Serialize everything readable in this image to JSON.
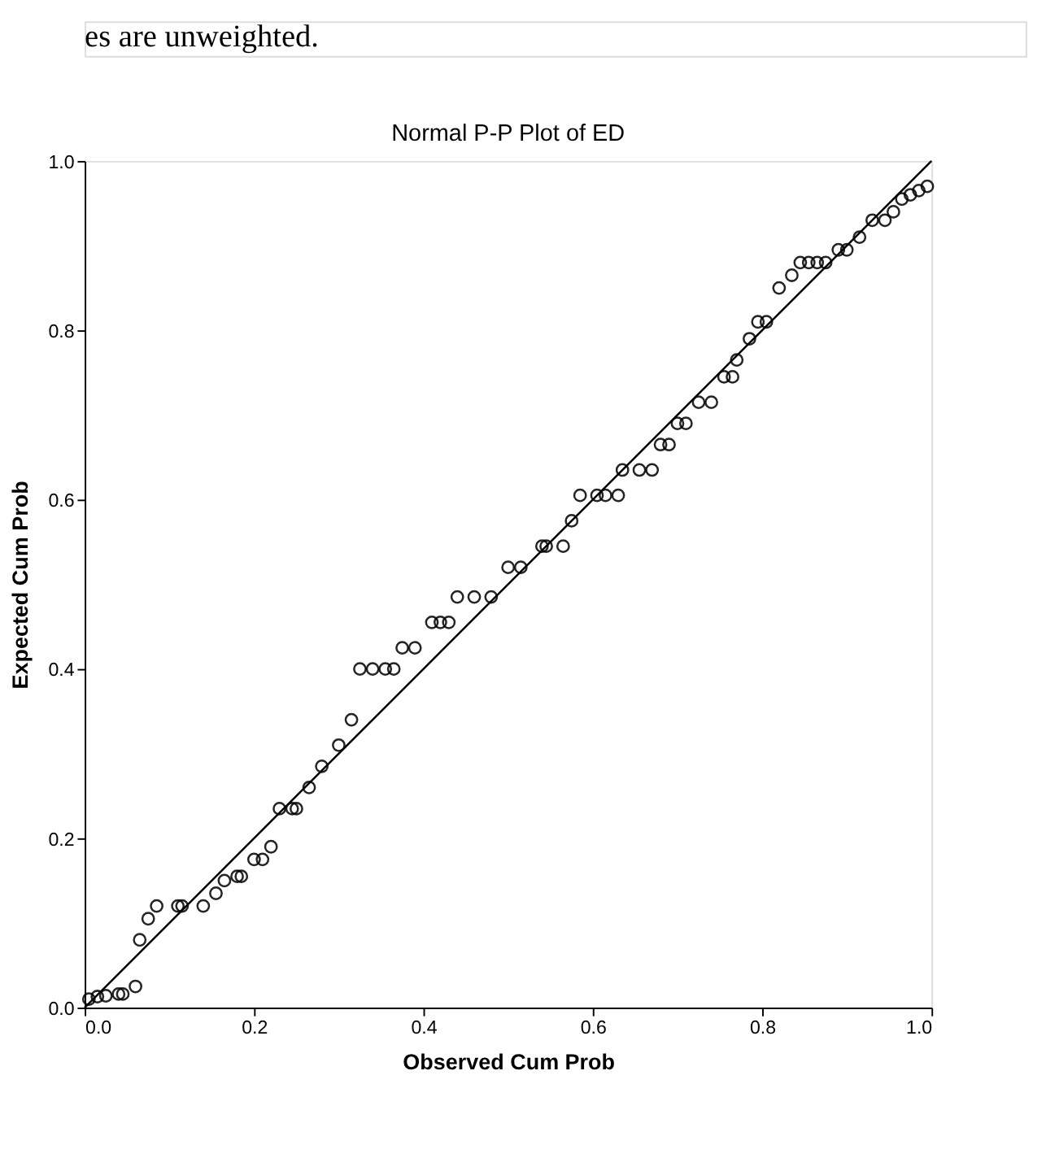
{
  "chart_data": {
    "type": "scatter",
    "title": "Normal P-P Plot of ED",
    "xlabel": "Observed Cum Prob",
    "ylabel": "Expected Cum Prob",
    "annotations": [
      "es are unweighted."
    ],
    "xlim": [
      0,
      1
    ],
    "ylim": [
      0,
      1
    ],
    "xticks": [
      {
        "value": 0,
        "label": "0.0"
      },
      0.2,
      0.4,
      0.6,
      0.8,
      {
        "value": 1,
        "label": "1.0"
      }
    ],
    "yticks": [
      {
        "value": 0,
        "label": "0.0"
      },
      0.2,
      0.4,
      0.6,
      0.8,
      {
        "value": 1,
        "label": "1.0"
      }
    ],
    "grid": false,
    "marker": "circle",
    "series": [
      {
        "color": "#000000",
        "x": [
          0.005,
          0.015,
          0.025,
          0.04,
          0.045,
          0.06,
          0.065,
          0.075,
          0.085,
          0.11,
          0.115,
          0.14,
          0.155,
          0.165,
          0.18,
          0.185,
          0.2,
          0.21,
          0.22,
          0.23,
          0.245,
          0.25,
          0.265,
          0.28,
          0.3,
          0.315,
          0.325,
          0.34,
          0.355,
          0.365,
          0.375,
          0.39,
          0.41,
          0.42,
          0.43,
          0.44,
          0.46,
          0.48,
          0.5,
          0.515,
          0.54,
          0.545,
          0.565,
          0.575,
          0.585,
          0.605,
          0.615,
          0.63,
          0.635,
          0.655,
          0.67,
          0.68,
          0.69,
          0.7,
          0.71,
          0.725,
          0.74,
          0.755,
          0.765,
          0.77,
          0.785,
          0.795,
          0.805,
          0.82,
          0.835,
          0.845,
          0.855,
          0.865,
          0.875,
          0.89,
          0.9,
          0.915,
          0.93,
          0.945,
          0.955,
          0.965,
          0.975,
          0.985,
          0.995
        ],
        "values": [
          0.01,
          0.013,
          0.014,
          0.016,
          0.016,
          0.025,
          0.08,
          0.105,
          0.12,
          0.12,
          0.12,
          0.12,
          0.135,
          0.15,
          0.155,
          0.155,
          0.175,
          0.175,
          0.19,
          0.235,
          0.235,
          0.235,
          0.26,
          0.285,
          0.31,
          0.34,
          0.4,
          0.4,
          0.4,
          0.4,
          0.425,
          0.425,
          0.455,
          0.455,
          0.455,
          0.485,
          0.485,
          0.485,
          0.52,
          0.52,
          0.545,
          0.545,
          0.545,
          0.575,
          0.605,
          0.605,
          0.605,
          0.605,
          0.635,
          0.635,
          0.635,
          0.665,
          0.665,
          0.69,
          0.69,
          0.715,
          0.715,
          0.745,
          0.745,
          0.765,
          0.79,
          0.81,
          0.81,
          0.85,
          0.865,
          0.88,
          0.88,
          0.88,
          0.88,
          0.895,
          0.895,
          0.91,
          0.93,
          0.93,
          0.94,
          0.955,
          0.96,
          0.965,
          0.97
        ]
      },
      {
        "type": "line",
        "color": "#000000",
        "marker": "none",
        "line_style": "solid",
        "x": [
          0,
          1
        ],
        "values": [
          0,
          1
        ]
      }
    ]
  }
}
